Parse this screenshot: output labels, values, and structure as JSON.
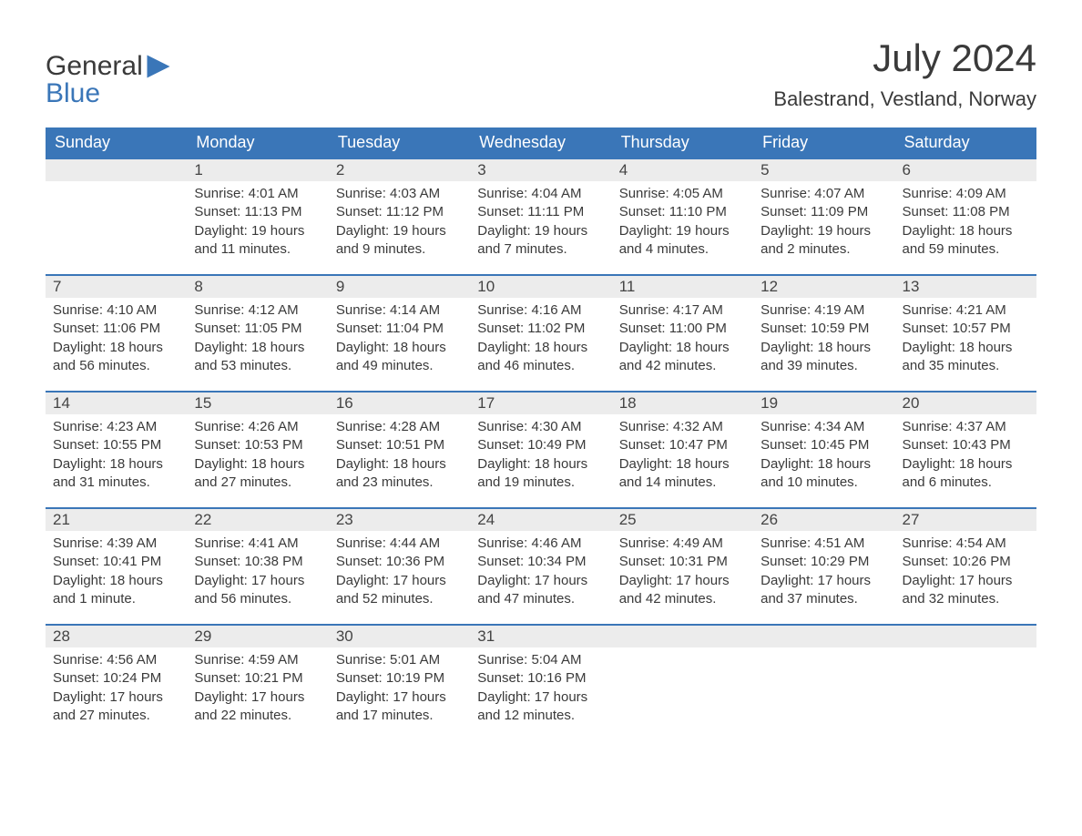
{
  "brand": {
    "word1": "General",
    "word2": "Blue"
  },
  "title": "July 2024",
  "location": "Balestrand, Vestland, Norway",
  "colors": {
    "header_bg": "#3a76b8",
    "header_text": "#ffffff",
    "daynum_bg": "#ececec",
    "rule": "#3a76b8",
    "body_text": "#3a3a3a",
    "page_bg": "#ffffff"
  },
  "typography": {
    "title_fontsize": 42,
    "location_fontsize": 22,
    "header_fontsize": 18,
    "daynum_fontsize": 17,
    "body_fontsize": 15
  },
  "daysOfWeek": [
    "Sunday",
    "Monday",
    "Tuesday",
    "Wednesday",
    "Thursday",
    "Friday",
    "Saturday"
  ],
  "startOffset": 1,
  "cells": [
    {
      "n": 1,
      "sr": "4:01 AM",
      "ss": "11:13 PM",
      "dl": "19 hours and 11 minutes."
    },
    {
      "n": 2,
      "sr": "4:03 AM",
      "ss": "11:12 PM",
      "dl": "19 hours and 9 minutes."
    },
    {
      "n": 3,
      "sr": "4:04 AM",
      "ss": "11:11 PM",
      "dl": "19 hours and 7 minutes."
    },
    {
      "n": 4,
      "sr": "4:05 AM",
      "ss": "11:10 PM",
      "dl": "19 hours and 4 minutes."
    },
    {
      "n": 5,
      "sr": "4:07 AM",
      "ss": "11:09 PM",
      "dl": "19 hours and 2 minutes."
    },
    {
      "n": 6,
      "sr": "4:09 AM",
      "ss": "11:08 PM",
      "dl": "18 hours and 59 minutes."
    },
    {
      "n": 7,
      "sr": "4:10 AM",
      "ss": "11:06 PM",
      "dl": "18 hours and 56 minutes."
    },
    {
      "n": 8,
      "sr": "4:12 AM",
      "ss": "11:05 PM",
      "dl": "18 hours and 53 minutes."
    },
    {
      "n": 9,
      "sr": "4:14 AM",
      "ss": "11:04 PM",
      "dl": "18 hours and 49 minutes."
    },
    {
      "n": 10,
      "sr": "4:16 AM",
      "ss": "11:02 PM",
      "dl": "18 hours and 46 minutes."
    },
    {
      "n": 11,
      "sr": "4:17 AM",
      "ss": "11:00 PM",
      "dl": "18 hours and 42 minutes."
    },
    {
      "n": 12,
      "sr": "4:19 AM",
      "ss": "10:59 PM",
      "dl": "18 hours and 39 minutes."
    },
    {
      "n": 13,
      "sr": "4:21 AM",
      "ss": "10:57 PM",
      "dl": "18 hours and 35 minutes."
    },
    {
      "n": 14,
      "sr": "4:23 AM",
      "ss": "10:55 PM",
      "dl": "18 hours and 31 minutes."
    },
    {
      "n": 15,
      "sr": "4:26 AM",
      "ss": "10:53 PM",
      "dl": "18 hours and 27 minutes."
    },
    {
      "n": 16,
      "sr": "4:28 AM",
      "ss": "10:51 PM",
      "dl": "18 hours and 23 minutes."
    },
    {
      "n": 17,
      "sr": "4:30 AM",
      "ss": "10:49 PM",
      "dl": "18 hours and 19 minutes."
    },
    {
      "n": 18,
      "sr": "4:32 AM",
      "ss": "10:47 PM",
      "dl": "18 hours and 14 minutes."
    },
    {
      "n": 19,
      "sr": "4:34 AM",
      "ss": "10:45 PM",
      "dl": "18 hours and 10 minutes."
    },
    {
      "n": 20,
      "sr": "4:37 AM",
      "ss": "10:43 PM",
      "dl": "18 hours and 6 minutes."
    },
    {
      "n": 21,
      "sr": "4:39 AM",
      "ss": "10:41 PM",
      "dl": "18 hours and 1 minute."
    },
    {
      "n": 22,
      "sr": "4:41 AM",
      "ss": "10:38 PM",
      "dl": "17 hours and 56 minutes."
    },
    {
      "n": 23,
      "sr": "4:44 AM",
      "ss": "10:36 PM",
      "dl": "17 hours and 52 minutes."
    },
    {
      "n": 24,
      "sr": "4:46 AM",
      "ss": "10:34 PM",
      "dl": "17 hours and 47 minutes."
    },
    {
      "n": 25,
      "sr": "4:49 AM",
      "ss": "10:31 PM",
      "dl": "17 hours and 42 minutes."
    },
    {
      "n": 26,
      "sr": "4:51 AM",
      "ss": "10:29 PM",
      "dl": "17 hours and 37 minutes."
    },
    {
      "n": 27,
      "sr": "4:54 AM",
      "ss": "10:26 PM",
      "dl": "17 hours and 32 minutes."
    },
    {
      "n": 28,
      "sr": "4:56 AM",
      "ss": "10:24 PM",
      "dl": "17 hours and 27 minutes."
    },
    {
      "n": 29,
      "sr": "4:59 AM",
      "ss": "10:21 PM",
      "dl": "17 hours and 22 minutes."
    },
    {
      "n": 30,
      "sr": "5:01 AM",
      "ss": "10:19 PM",
      "dl": "17 hours and 17 minutes."
    },
    {
      "n": 31,
      "sr": "5:04 AM",
      "ss": "10:16 PM",
      "dl": "17 hours and 12 minutes."
    }
  ],
  "labels": {
    "sunrise": "Sunrise: ",
    "sunset": "Sunset: ",
    "daylight": "Daylight: "
  }
}
